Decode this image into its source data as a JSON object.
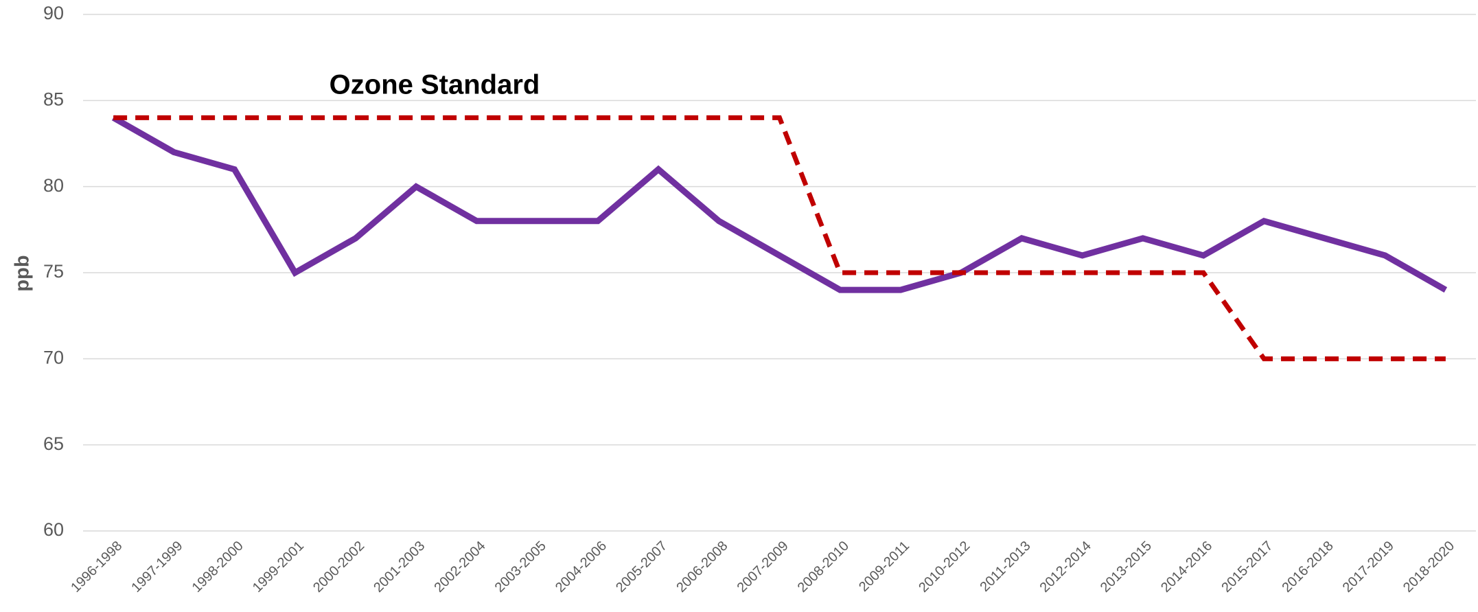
{
  "chart_data": {
    "type": "line",
    "y_label": "ppb",
    "annotations": [
      "Ozone Standard"
    ],
    "categories": [
      "1996-1998",
      "1997-1999",
      "1998-2000",
      "1999-2001",
      "2000-2002",
      "2001-2003",
      "2002-2004",
      "2003-2005",
      "2004-2006",
      "2005-2007",
      "2006-2008",
      "2007-2009",
      "2008-2010",
      "2009-2011",
      "2010-2012",
      "2011-2013",
      "2012-2014",
      "2013-2015",
      "2014-2016",
      "2015-2017",
      "2016-2018",
      "2017-2019",
      "2018-2020"
    ],
    "series": [
      {
        "color": "#7030a0",
        "values": [
          84,
          82,
          81,
          75,
          77,
          80,
          78,
          78,
          78,
          81,
          78,
          76,
          74,
          74,
          75,
          77,
          76,
          77,
          76,
          78,
          77,
          76,
          74
        ]
      },
      {
        "name": "Ozone Standard",
        "color": "#c00000",
        "dashed": true,
        "values": [
          84,
          84,
          84,
          84,
          84,
          84,
          84,
          84,
          84,
          84,
          84,
          84,
          75,
          75,
          75,
          75,
          75,
          75,
          75,
          70,
          70,
          70,
          70
        ]
      }
    ],
    "ylim": [
      60,
      90
    ],
    "yticks": [
      60,
      65,
      70,
      75,
      80,
      85,
      90
    ],
    "grid": true
  }
}
